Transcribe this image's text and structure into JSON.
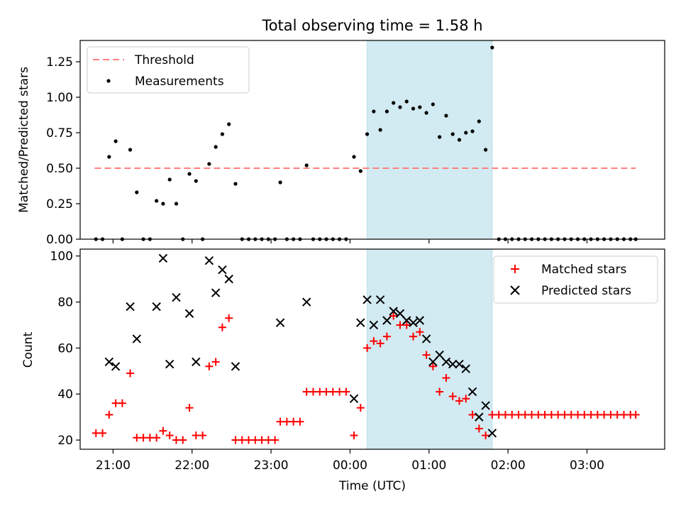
{
  "figure": {
    "title": "Total observing time = 1.58 h"
  },
  "chart_data": [
    {
      "type": "scatter",
      "ylabel": "Matched/Predicted stars",
      "xlabel": "",
      "ylim": [
        0,
        1.4
      ],
      "xlim": [
        "20:35",
        "03:59"
      ],
      "yticks": [
        "0.00",
        "0.25",
        "0.50",
        "0.75",
        "1.00",
        "1.25"
      ],
      "ytick_values": [
        0,
        0.25,
        0.5,
        0.75,
        1.0,
        1.25
      ],
      "grid": false,
      "legend_position": "upper-left",
      "shaded_region": {
        "start": "00:13",
        "end": "01:48",
        "color": "#add8e6"
      },
      "threshold": {
        "name": "Threshold",
        "value": 0.5,
        "from": "20:46",
        "to": "03:37",
        "color": "#ff7f7f",
        "style": "dashed"
      },
      "series": [
        {
          "name": "Measurements",
          "color": "#000000",
          "points": [
            [
              "20:47",
              0.0
            ],
            [
              "20:52",
              0.0
            ],
            [
              "20:57",
              0.58
            ],
            [
              "21:02",
              0.69
            ],
            [
              "21:07",
              0.0
            ],
            [
              "21:13",
              0.63
            ],
            [
              "21:18",
              0.33
            ],
            [
              "21:23",
              0.0
            ],
            [
              "21:28",
              0.0
            ],
            [
              "21:33",
              0.27
            ],
            [
              "21:38",
              0.25
            ],
            [
              "21:43",
              0.42
            ],
            [
              "21:48",
              0.25
            ],
            [
              "21:53",
              0.0
            ],
            [
              "21:58",
              0.46
            ],
            [
              "22:03",
              0.41
            ],
            [
              "22:08",
              0.0
            ],
            [
              "22:13",
              0.53
            ],
            [
              "22:18",
              0.65
            ],
            [
              "22:23",
              0.74
            ],
            [
              "22:28",
              0.81
            ],
            [
              "22:33",
              0.39
            ],
            [
              "22:38",
              0.0
            ],
            [
              "22:43",
              0.0
            ],
            [
              "22:48",
              0.0
            ],
            [
              "22:53",
              0.0
            ],
            [
              "22:58",
              0.0
            ],
            [
              "23:03",
              0.0
            ],
            [
              "23:07",
              0.4
            ],
            [
              "23:12",
              0.0
            ],
            [
              "23:17",
              0.0
            ],
            [
              "23:22",
              0.0
            ],
            [
              "23:27",
              0.52
            ],
            [
              "23:32",
              0.0
            ],
            [
              "23:37",
              0.0
            ],
            [
              "23:42",
              0.0
            ],
            [
              "23:47",
              0.0
            ],
            [
              "23:52",
              0.0
            ],
            [
              "23:57",
              0.0
            ],
            [
              "00:03",
              0.58
            ],
            [
              "00:08",
              0.48
            ],
            [
              "00:13",
              0.74
            ],
            [
              "00:18",
              0.9
            ],
            [
              "00:23",
              0.77
            ],
            [
              "00:28",
              0.9
            ],
            [
              "00:33",
              0.96
            ],
            [
              "00:38",
              0.93
            ],
            [
              "00:43",
              0.97
            ],
            [
              "00:48",
              0.92
            ],
            [
              "00:53",
              0.93
            ],
            [
              "00:58",
              0.89
            ],
            [
              "01:03",
              0.95
            ],
            [
              "01:08",
              0.72
            ],
            [
              "01:13",
              0.87
            ],
            [
              "01:18",
              0.74
            ],
            [
              "01:23",
              0.7
            ],
            [
              "01:28",
              0.75
            ],
            [
              "01:33",
              0.76
            ],
            [
              "01:38",
              0.83
            ],
            [
              "01:43",
              0.63
            ],
            [
              "01:48",
              1.35
            ],
            [
              "01:53",
              0.0
            ],
            [
              "01:58",
              0.0
            ],
            [
              "02:03",
              0.0
            ],
            [
              "02:08",
              0.0
            ],
            [
              "02:13",
              0.0
            ],
            [
              "02:18",
              0.0
            ],
            [
              "02:23",
              0.0
            ],
            [
              "02:28",
              0.0
            ],
            [
              "02:33",
              0.0
            ],
            [
              "02:38",
              0.0
            ],
            [
              "02:43",
              0.0
            ],
            [
              "02:48",
              0.0
            ],
            [
              "02:53",
              0.0
            ],
            [
              "02:58",
              0.0
            ],
            [
              "03:03",
              0.0
            ],
            [
              "03:08",
              0.0
            ],
            [
              "03:13",
              0.0
            ],
            [
              "03:18",
              0.0
            ],
            [
              "03:23",
              0.0
            ],
            [
              "03:28",
              0.0
            ],
            [
              "03:33",
              0.0
            ],
            [
              "03:37",
              0.0
            ]
          ]
        }
      ]
    },
    {
      "type": "scatter",
      "ylabel": "Count",
      "xlabel": "Time (UTC)",
      "ylim": [
        16,
        103
      ],
      "xlim": [
        "20:35",
        "03:59"
      ],
      "yticks": [
        "20",
        "40",
        "60",
        "80",
        "100"
      ],
      "ytick_values": [
        20,
        40,
        60,
        80,
        100
      ],
      "xticks": [
        "21:00",
        "22:00",
        "23:00",
        "00:00",
        "01:00",
        "02:00",
        "03:00"
      ],
      "grid": false,
      "legend_position": "upper-right",
      "shaded_region": {
        "start": "00:13",
        "end": "01:48",
        "color": "#add8e6"
      },
      "series": [
        {
          "name": "Matched stars",
          "marker": "plus",
          "color": "#ff0000",
          "points": [
            [
              "20:47",
              23
            ],
            [
              "20:52",
              23
            ],
            [
              "20:57",
              31
            ],
            [
              "21:02",
              36
            ],
            [
              "21:07",
              36
            ],
            [
              "21:13",
              49
            ],
            [
              "21:18",
              21
            ],
            [
              "21:23",
              21
            ],
            [
              "21:28",
              21
            ],
            [
              "21:33",
              21
            ],
            [
              "21:38",
              24
            ],
            [
              "21:43",
              22
            ],
            [
              "21:48",
              20
            ],
            [
              "21:53",
              20
            ],
            [
              "21:58",
              34
            ],
            [
              "22:03",
              22
            ],
            [
              "22:08",
              22
            ],
            [
              "22:13",
              52
            ],
            [
              "22:18",
              54
            ],
            [
              "22:23",
              69
            ],
            [
              "22:28",
              73
            ],
            [
              "22:33",
              20
            ],
            [
              "22:38",
              20
            ],
            [
              "22:43",
              20
            ],
            [
              "22:48",
              20
            ],
            [
              "22:53",
              20
            ],
            [
              "22:58",
              20
            ],
            [
              "23:03",
              20
            ],
            [
              "23:07",
              28
            ],
            [
              "23:12",
              28
            ],
            [
              "23:17",
              28
            ],
            [
              "23:22",
              28
            ],
            [
              "23:27",
              41
            ],
            [
              "23:32",
              41
            ],
            [
              "23:37",
              41
            ],
            [
              "23:42",
              41
            ],
            [
              "23:47",
              41
            ],
            [
              "23:52",
              41
            ],
            [
              "23:57",
              41
            ],
            [
              "00:03",
              22
            ],
            [
              "00:08",
              34
            ],
            [
              "00:13",
              60
            ],
            [
              "00:18",
              63
            ],
            [
              "00:23",
              62
            ],
            [
              "00:28",
              65
            ],
            [
              "00:33",
              74
            ],
            [
              "00:38",
              70
            ],
            [
              "00:43",
              70
            ],
            [
              "00:48",
              65
            ],
            [
              "00:53",
              67
            ],
            [
              "00:58",
              57
            ],
            [
              "01:03",
              52
            ],
            [
              "01:08",
              41
            ],
            [
              "01:13",
              47
            ],
            [
              "01:18",
              39
            ],
            [
              "01:23",
              37
            ],
            [
              "01:28",
              38
            ],
            [
              "01:33",
              31
            ],
            [
              "01:38",
              25
            ],
            [
              "01:43",
              22
            ],
            [
              "01:48",
              31
            ],
            [
              "01:53",
              31
            ],
            [
              "01:58",
              31
            ],
            [
              "02:03",
              31
            ],
            [
              "02:08",
              31
            ],
            [
              "02:13",
              31
            ],
            [
              "02:18",
              31
            ],
            [
              "02:23",
              31
            ],
            [
              "02:28",
              31
            ],
            [
              "02:33",
              31
            ],
            [
              "02:38",
              31
            ],
            [
              "02:43",
              31
            ],
            [
              "02:48",
              31
            ],
            [
              "02:53",
              31
            ],
            [
              "02:58",
              31
            ],
            [
              "03:03",
              31
            ],
            [
              "03:08",
              31
            ],
            [
              "03:13",
              31
            ],
            [
              "03:18",
              31
            ],
            [
              "03:23",
              31
            ],
            [
              "03:28",
              31
            ],
            [
              "03:33",
              31
            ],
            [
              "03:37",
              31
            ]
          ]
        },
        {
          "name": "Predicted stars",
          "marker": "x",
          "color": "#000000",
          "points": [
            [
              "20:57",
              54
            ],
            [
              "21:02",
              52
            ],
            [
              "21:13",
              78
            ],
            [
              "21:18",
              64
            ],
            [
              "21:33",
              78
            ],
            [
              "21:38",
              99
            ],
            [
              "21:43",
              53
            ],
            [
              "21:48",
              82
            ],
            [
              "21:58",
              75
            ],
            [
              "22:03",
              54
            ],
            [
              "22:13",
              98
            ],
            [
              "22:18",
              84
            ],
            [
              "22:23",
              94
            ],
            [
              "22:28",
              90
            ],
            [
              "22:33",
              52
            ],
            [
              "23:07",
              71
            ],
            [
              "23:27",
              80
            ],
            [
              "00:03",
              38
            ],
            [
              "00:08",
              71
            ],
            [
              "00:13",
              81
            ],
            [
              "00:18",
              70
            ],
            [
              "00:23",
              81
            ],
            [
              "00:28",
              72
            ],
            [
              "00:33",
              76
            ],
            [
              "00:38",
              75
            ],
            [
              "00:43",
              72
            ],
            [
              "00:48",
              71
            ],
            [
              "00:53",
              72
            ],
            [
              "00:58",
              64
            ],
            [
              "01:03",
              54
            ],
            [
              "01:08",
              57
            ],
            [
              "01:13",
              54
            ],
            [
              "01:18",
              53
            ],
            [
              "01:23",
              53
            ],
            [
              "01:28",
              51
            ],
            [
              "01:33",
              41
            ],
            [
              "01:38",
              30
            ],
            [
              "01:43",
              35
            ],
            [
              "01:48",
              23
            ]
          ]
        }
      ]
    }
  ]
}
